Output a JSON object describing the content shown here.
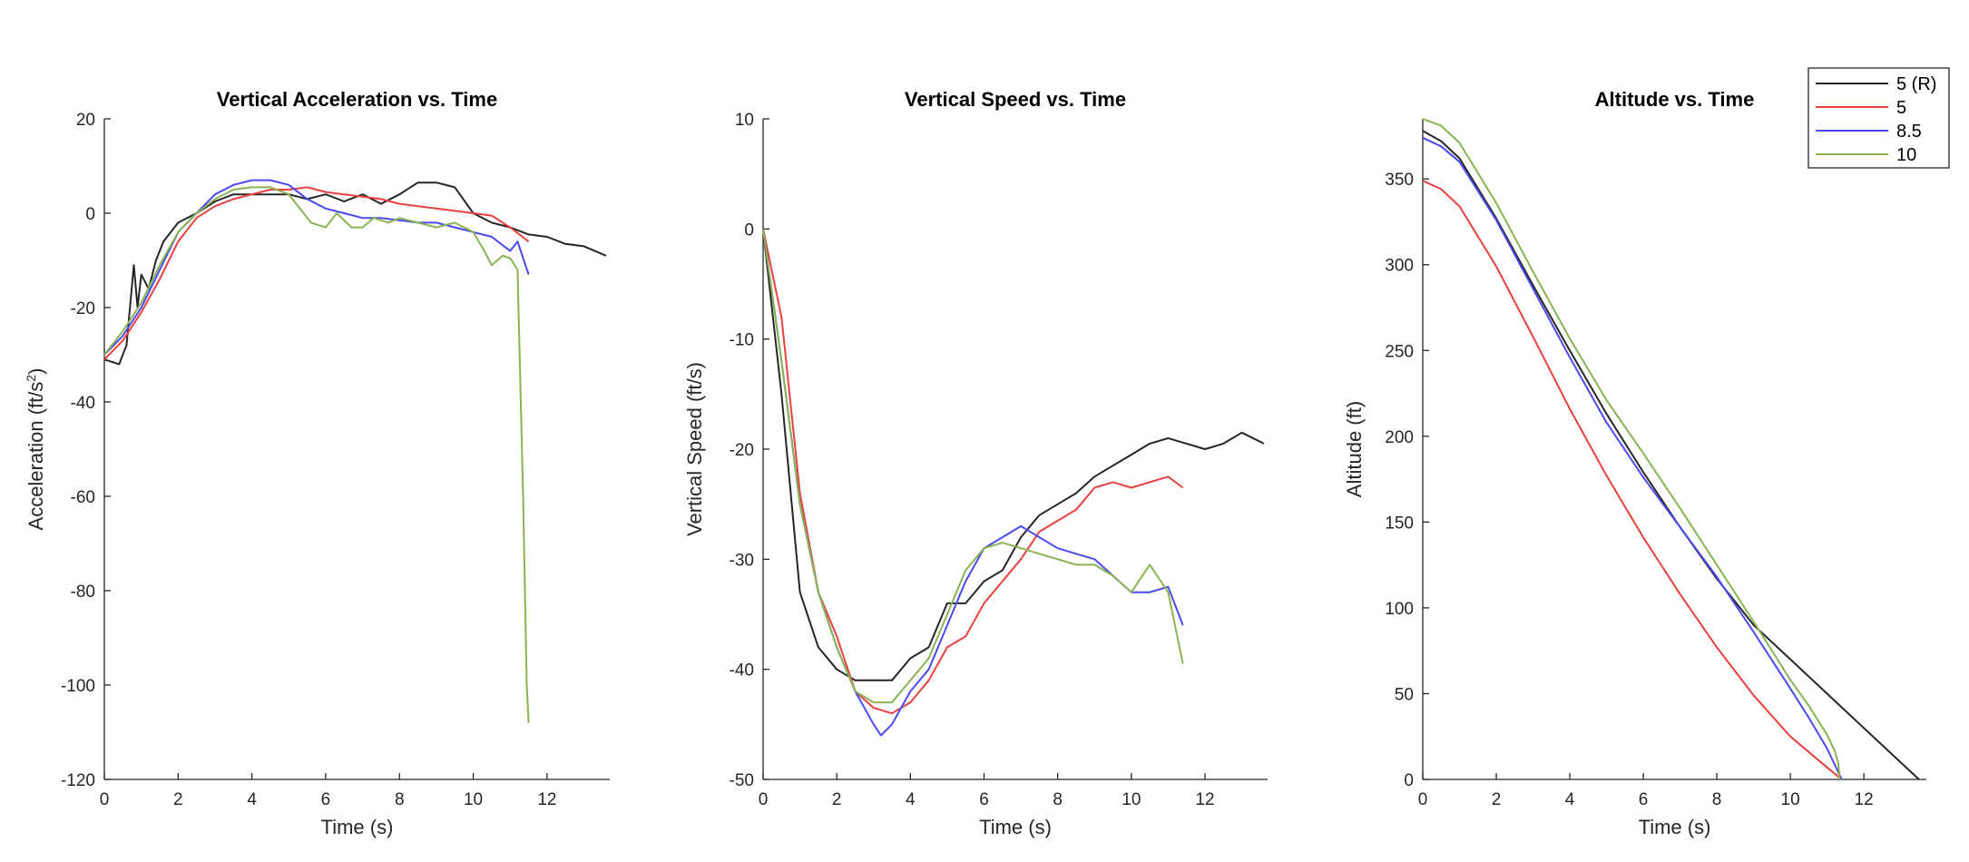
{
  "chart_data": [
    {
      "type": "line",
      "title": "Vertical Acceleration vs. Time",
      "xlabel": "Time (s)",
      "ylabel_main": "Acceleration (ft/s",
      "ylabel_sup": "2",
      "ylabel_end": ")",
      "xlim": [
        0,
        13.7
      ],
      "ylim": [
        -120,
        20
      ],
      "xticks": [
        0,
        2,
        4,
        6,
        8,
        10,
        12
      ],
      "yticks": [
        -120,
        -100,
        -80,
        -60,
        -40,
        -20,
        0,
        20
      ],
      "grid": false,
      "series": [
        {
          "color": "#262626",
          "x": [
            0,
            0.4,
            0.6,
            0.8,
            0.9,
            1.0,
            1.2,
            1.4,
            1.6,
            2,
            2.5,
            3,
            3.5,
            4,
            4.5,
            5,
            5.5,
            6,
            6.5,
            7,
            7.5,
            8,
            8.5,
            9,
            9.5,
            10,
            10.5,
            11,
            11.5,
            12,
            12.5,
            13,
            13.6
          ],
          "y": [
            -31,
            -32,
            -28,
            -11,
            -20,
            -13,
            -16,
            -10,
            -6,
            -2,
            0,
            2.5,
            4,
            4,
            4,
            4,
            3,
            4,
            2.5,
            4,
            2,
            4,
            6.5,
            6.5,
            5.5,
            0,
            -2,
            -3,
            -4.5,
            -5,
            -6.5,
            -7,
            -9
          ]
        },
        {
          "color": "#e8413f",
          "x": [
            0,
            0.5,
            1,
            1.5,
            2,
            2.5,
            3,
            3.5,
            4,
            4.5,
            5,
            5.5,
            6,
            6.5,
            7,
            7.5,
            8,
            8.5,
            9,
            9.5,
            10,
            10.5,
            11,
            11.5
          ],
          "y": [
            -31,
            -27,
            -21,
            -14,
            -6,
            -1,
            1.5,
            3,
            4,
            5,
            5,
            5.5,
            4.5,
            4,
            3.5,
            3,
            2,
            1.5,
            1,
            0.5,
            0,
            -0.5,
            -3,
            -6
          ]
        },
        {
          "color": "#4a4af0",
          "x": [
            0,
            0.5,
            1,
            1.5,
            2,
            2.5,
            3,
            3.5,
            4,
            4.5,
            5,
            5.5,
            6,
            6.5,
            7,
            7.5,
            8,
            8.5,
            9,
            9.5,
            10,
            10.5,
            11,
            11.2,
            11.5
          ],
          "y": [
            -30,
            -26,
            -20,
            -12,
            -4,
            0,
            4,
            6,
            7,
            7,
            6,
            3,
            1,
            0,
            -1,
            -1,
            -1.5,
            -2,
            -2,
            -3,
            -4,
            -5,
            -8,
            -6,
            -13
          ]
        },
        {
          "color": "#8ab353",
          "x": [
            0,
            0.5,
            1,
            1.5,
            2,
            2.5,
            3,
            3.5,
            4,
            4.5,
            5,
            5.3,
            5.6,
            6,
            6.3,
            6.7,
            7,
            7.3,
            7.7,
            8,
            8.5,
            9,
            9.5,
            10,
            10.3,
            10.5,
            10.8,
            11.0,
            11.2,
            11.35,
            11.45,
            11.5
          ],
          "y": [
            -30,
            -25,
            -19,
            -11,
            -4,
            0,
            3,
            5,
            5.5,
            5.5,
            4,
            1,
            -2,
            -3,
            0,
            -3,
            -3,
            -1,
            -2,
            -1,
            -2,
            -3,
            -2,
            -4,
            -8,
            -11,
            -9,
            -9.5,
            -12,
            -60,
            -100,
            -108
          ]
        }
      ]
    },
    {
      "type": "line",
      "title": "Vertical Speed vs. Time",
      "xlabel": "Time (s)",
      "ylabel": "Vertical Speed (ft/s)",
      "xlim": [
        0,
        13.7
      ],
      "ylim": [
        -50,
        10
      ],
      "xticks": [
        0,
        2,
        4,
        6,
        8,
        10,
        12
      ],
      "yticks": [
        -50,
        -40,
        -30,
        -20,
        -10,
        0,
        10
      ],
      "grid": false,
      "series": [
        {
          "color": "#262626",
          "x": [
            0,
            0.5,
            1,
            1.5,
            2,
            2.5,
            3,
            3.5,
            4,
            4.5,
            5,
            5.5,
            6,
            6.5,
            7,
            7.5,
            8,
            8.5,
            9,
            9.5,
            10,
            10.5,
            11,
            11.5,
            12,
            12.5,
            13,
            13.6
          ],
          "y": [
            0,
            -15,
            -33,
            -38,
            -40,
            -41,
            -41,
            -41,
            -39,
            -38,
            -34,
            -34,
            -32,
            -31,
            -28,
            -26,
            -25,
            -24,
            -22.5,
            -21.5,
            -20.5,
            -19.5,
            -19,
            -19.5,
            -20,
            -19.5,
            -18.5,
            -19.5
          ]
        },
        {
          "color": "#e8413f",
          "x": [
            0,
            0.5,
            1,
            1.5,
            2,
            2.5,
            3,
            3.5,
            4,
            4.5,
            5,
            5.5,
            6,
            6.5,
            7,
            7.5,
            8,
            8.5,
            9,
            9.5,
            10,
            10.5,
            11,
            11.4
          ],
          "y": [
            0,
            -8,
            -24,
            -33,
            -37,
            -42,
            -43.5,
            -44,
            -43,
            -41,
            -38,
            -37,
            -34,
            -32,
            -30,
            -27.5,
            -26.5,
            -25.5,
            -23.5,
            -23,
            -23.5,
            -23,
            -22.5,
            -23.5
          ]
        },
        {
          "color": "#4a4af0",
          "x": [
            0,
            0.5,
            1,
            1.5,
            2,
            2.5,
            3,
            3.2,
            3.5,
            4,
            4.5,
            5,
            5.5,
            6,
            6.5,
            7,
            7.5,
            8,
            8.5,
            9,
            9.5,
            10,
            10.5,
            11,
            11.4
          ],
          "y": [
            0,
            -12,
            -25,
            -33,
            -38,
            -42,
            -45,
            -46,
            -45,
            -42,
            -40,
            -36,
            -32,
            -29,
            -28,
            -27,
            -28,
            -29,
            -29.5,
            -30,
            -31.5,
            -33,
            -33,
            -32.5,
            -36
          ]
        },
        {
          "color": "#8ab353",
          "x": [
            0,
            0.5,
            1,
            1.5,
            2,
            2.5,
            3,
            3.5,
            4,
            4.5,
            5,
            5.5,
            6,
            6.5,
            7,
            7.5,
            8,
            8.5,
            9,
            9.5,
            10,
            10.5,
            11,
            11.4
          ],
          "y": [
            0,
            -12,
            -25,
            -33,
            -38,
            -42,
            -43,
            -43,
            -41,
            -39,
            -35,
            -31,
            -29,
            -28.5,
            -29,
            -29.5,
            -30,
            -30.5,
            -30.5,
            -31.5,
            -33,
            -30.5,
            -33,
            -39.5
          ]
        }
      ]
    },
    {
      "type": "line",
      "title": "Altitude vs. Time",
      "xlabel": "Time (s)",
      "ylabel": "Altitude (ft)",
      "xlim": [
        0,
        13.7
      ],
      "ylim": [
        0,
        385
      ],
      "xticks": [
        0,
        2,
        4,
        6,
        8,
        10,
        12
      ],
      "yticks": [
        0,
        50,
        100,
        150,
        200,
        250,
        300,
        350
      ],
      "grid": false,
      "series": [
        {
          "name": "5 (R)",
          "color": "#262626",
          "x": [
            0,
            0.5,
            1,
            2,
            3,
            4,
            5,
            6,
            7,
            8,
            9,
            10,
            11,
            12,
            13,
            13.5
          ],
          "y": [
            378,
            372,
            362,
            327,
            288,
            250,
            213,
            179,
            147,
            117,
            90,
            70,
            50,
            30,
            10,
            0
          ]
        },
        {
          "name": "5",
          "color": "#e8413f",
          "x": [
            0,
            0.5,
            1,
            2,
            3,
            4,
            5,
            6,
            7,
            8,
            9,
            10,
            11,
            11.4
          ],
          "y": [
            349,
            344,
            334,
            299,
            258,
            216,
            177,
            141,
            108,
            77,
            49,
            25,
            7,
            0
          ]
        },
        {
          "name": "8.5",
          "color": "#4a4af0",
          "x": [
            0,
            0.5,
            1,
            2,
            3,
            4,
            5,
            6,
            7,
            8,
            9,
            10,
            10.5,
            11,
            11.4
          ],
          "y": [
            374,
            369,
            360,
            326,
            286,
            246,
            208,
            176,
            147,
            118,
            86,
            53,
            36,
            18,
            0
          ]
        },
        {
          "name": "10",
          "color": "#8ab353",
          "x": [
            0,
            0.5,
            1,
            2,
            3,
            4,
            5,
            6,
            7,
            8,
            9,
            10,
            10.5,
            11,
            11.2,
            11.3,
            11.35
          ],
          "y": [
            385,
            381,
            371,
            336,
            296,
            257,
            221,
            190,
            158,
            125,
            92,
            58,
            43,
            26,
            17,
            10,
            0
          ]
        }
      ]
    }
  ]
}
